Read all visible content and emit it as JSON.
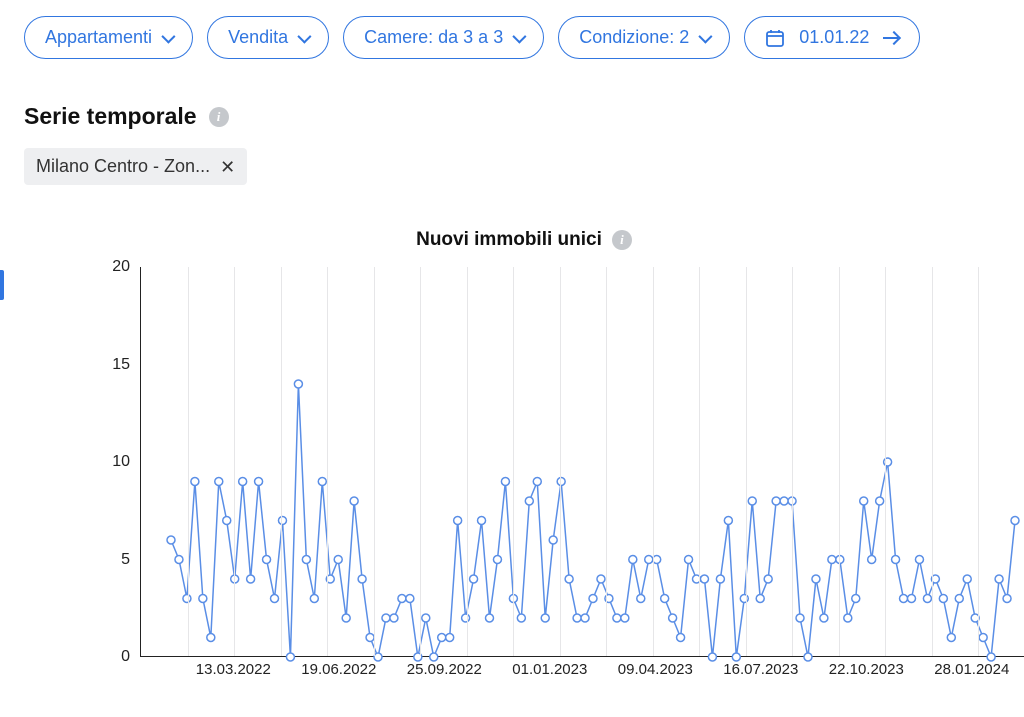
{
  "filters": {
    "type": "Appartamenti",
    "transaction": "Vendita",
    "rooms": "Camere: da 3 a 3",
    "condition": "Condizione: 2",
    "date": "01.01.22"
  },
  "section_title": "Serie temporale",
  "chip_label": "Milano Centro - Zon...",
  "chart": {
    "title": "Nuovi immobili unici",
    "type": "line",
    "ylim": [
      0,
      20
    ],
    "ytick_step": 5,
    "x_labels": [
      "13.03.2022",
      "19.06.2022",
      "25.09.2022",
      "01.01.2023",
      "09.04.2023",
      "16.07.2023",
      "22.10.2023",
      "28.01.2024"
    ],
    "line_color": "#5a8ee6",
    "marker_fill": "#ffffff",
    "marker_stroke": "#5a8ee6",
    "marker_radius": 4,
    "line_width": 1.5,
    "grid_color": "#e6e6e8",
    "values": [
      6,
      5,
      3,
      9,
      3,
      1,
      9,
      7,
      4,
      9,
      4,
      9,
      5,
      3,
      7,
      0,
      14,
      5,
      3,
      9,
      4,
      5,
      2,
      8,
      4,
      1,
      0,
      2,
      2,
      3,
      3,
      0,
      2,
      0,
      1,
      1,
      7,
      2,
      4,
      7,
      2,
      5,
      9,
      3,
      2,
      8,
      9,
      2,
      6,
      9,
      4,
      2,
      2,
      3,
      4,
      3,
      2,
      2,
      5,
      3,
      5,
      5,
      3,
      2,
      1,
      5,
      4,
      4,
      0,
      4,
      7,
      0,
      3,
      8,
      3,
      4,
      8,
      8,
      8,
      2,
      0,
      4,
      2,
      5,
      5,
      2,
      3,
      8,
      5,
      8,
      10,
      5,
      3,
      3,
      5,
      3,
      4,
      3,
      1,
      3,
      4,
      2,
      1,
      0,
      4,
      3,
      7
    ]
  },
  "colors": {
    "primary": "#3176e0",
    "text": "#111111"
  },
  "label_fontsize": 16
}
